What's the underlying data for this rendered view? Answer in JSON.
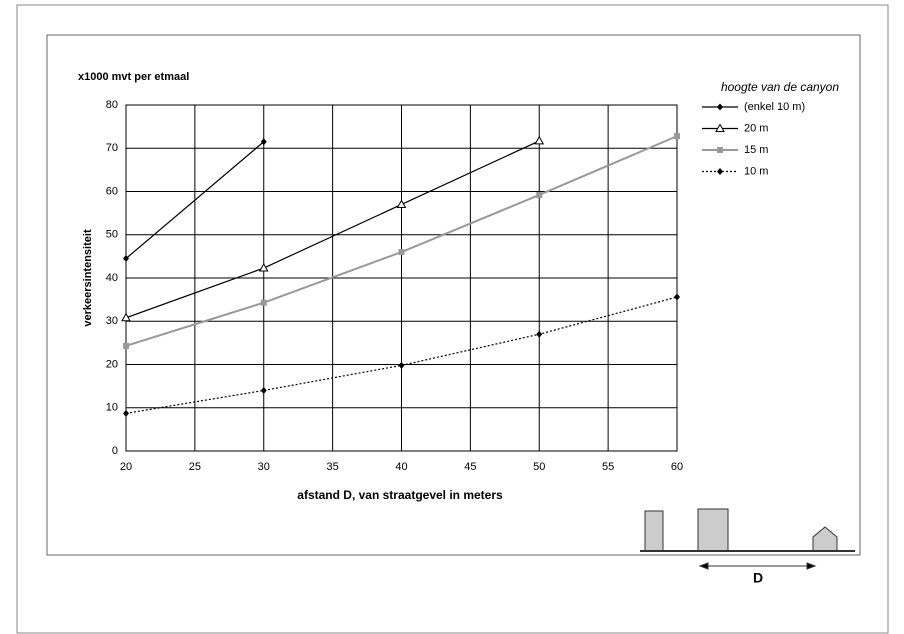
{
  "chart_data": {
    "type": "line",
    "y_unit_label": "x1000 mvt per etmaal",
    "ylabel": "verkeersintensiteit",
    "xlabel": "afstand D, van straatgevel in meters",
    "legend_title": "hoogte van de canyon",
    "annotations": [
      "D"
    ],
    "x": [
      20,
      30,
      40,
      50,
      60
    ],
    "series": [
      {
        "name": "(enkel 10 m)",
        "color": "#000000",
        "marker": "diamond",
        "dash": "none",
        "values": [
          44.5,
          71.5,
          null,
          null,
          null
        ]
      },
      {
        "name": "20 m",
        "color": "#000000",
        "marker": "triangle",
        "dash": "none",
        "values": [
          30.8,
          42.3,
          57,
          71.7,
          null
        ]
      },
      {
        "name": "15 m",
        "color": "#999999",
        "marker": "square",
        "dash": "none",
        "values": [
          24.3,
          34.3,
          46,
          59.2,
          72.8
        ]
      },
      {
        "name": "10 m",
        "color": "#000000",
        "marker": "diamond",
        "dash": "2,2",
        "values": [
          8.7,
          14,
          19.8,
          27,
          35.6
        ]
      }
    ],
    "xlim": [
      20,
      60
    ],
    "xticks": [
      20,
      25,
      30,
      35,
      40,
      45,
      50,
      55,
      60
    ],
    "ylim": [
      0,
      80
    ],
    "yticks": [
      0,
      10,
      20,
      30,
      40,
      50,
      60,
      70,
      80
    ],
    "grid": true,
    "legend": "right"
  }
}
